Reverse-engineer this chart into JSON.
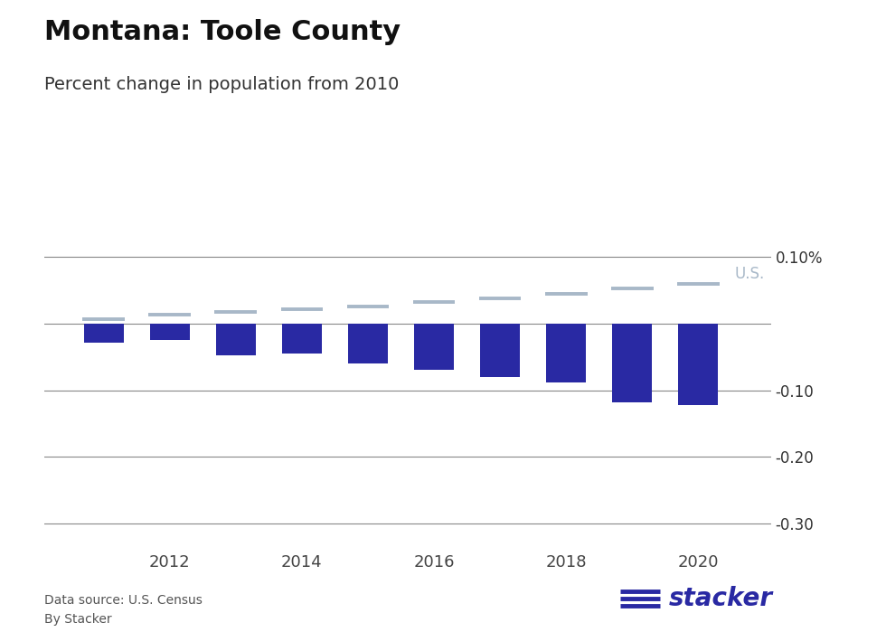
{
  "title": "Montana: Toole County",
  "subtitle": "Percent change in population from 2010",
  "years": [
    2011,
    2012,
    2013,
    2014,
    2015,
    2016,
    2017,
    2018,
    2019,
    2020
  ],
  "county_values": [
    -0.028,
    -0.025,
    -0.048,
    -0.045,
    -0.06,
    -0.07,
    -0.08,
    -0.088,
    -0.118,
    -0.123
  ],
  "us_values": [
    0.007,
    0.013,
    0.018,
    0.022,
    0.026,
    0.032,
    0.038,
    0.045,
    0.053,
    0.06
  ],
  "bar_color": "#2929a3",
  "us_line_color": "#a8b8c8",
  "us_label_color": "#a8b8c8",
  "ylim": [
    -0.34,
    0.135
  ],
  "yticks": [
    0.1,
    0.0,
    -0.1,
    -0.2,
    -0.3
  ],
  "background_color": "#ffffff",
  "footer_source": "Data source: U.S. Census",
  "footer_by": "By Stacker",
  "title_fontsize": 22,
  "subtitle_fontsize": 14,
  "stacker_color": "#2929a3",
  "axis_color": "#888888"
}
